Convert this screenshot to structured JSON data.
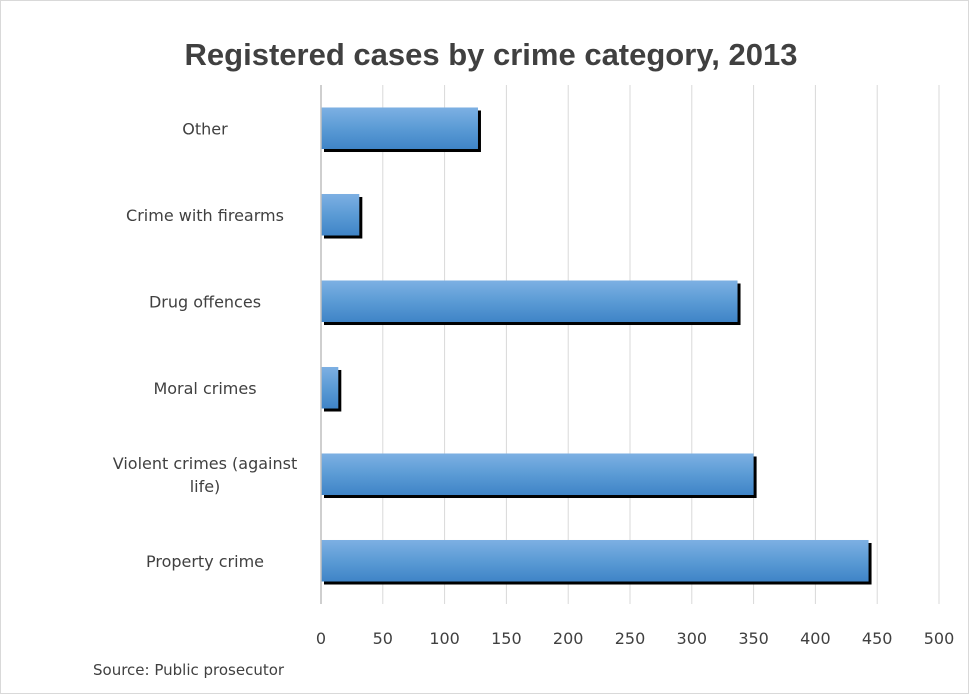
{
  "chart_data": {
    "type": "bar",
    "orientation": "horizontal",
    "title": "Registered cases by crime category, 2013",
    "categories": [
      "Other",
      "Crime with firearms",
      "Drug offences",
      "Moral crimes",
      "Violent crimes (against life)",
      "Property crime"
    ],
    "category_lines": [
      [
        "Other"
      ],
      [
        "Crime with firearms"
      ],
      [
        "Drug offences"
      ],
      [
        "Moral crimes"
      ],
      [
        "Violent crimes (against",
        "life)"
      ],
      [
        "Property crime"
      ]
    ],
    "values": [
      127,
      31,
      337,
      14,
      350,
      443
    ],
    "xlim": [
      0,
      500
    ],
    "xticks": [
      "0",
      "50",
      "100",
      "150",
      "200",
      "250",
      "300",
      "350",
      "400",
      "450",
      "500"
    ],
    "grid": true,
    "bar_color": "#5b9bd5",
    "shadow_color": "#000000"
  },
  "footer": {
    "source": "Source: Public prosecutor"
  }
}
